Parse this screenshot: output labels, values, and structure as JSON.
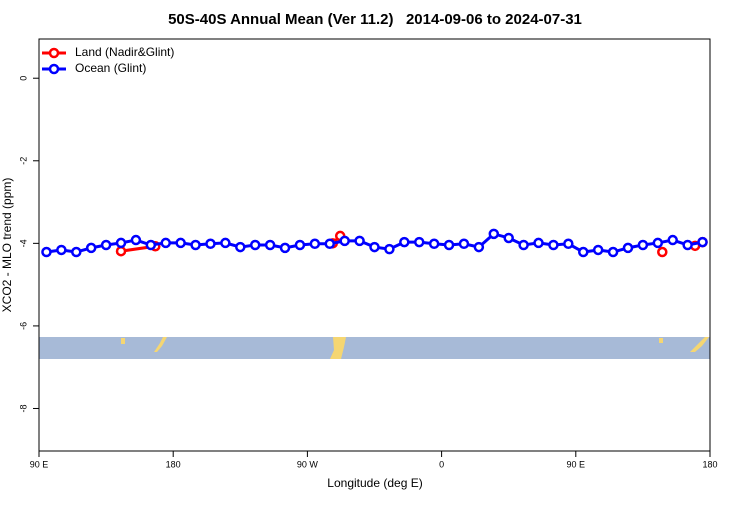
{
  "chart_data": {
    "type": "line",
    "title": "50S-40S Annual Mean (Ver 11.2)   2014-09-06 to 2024-07-31",
    "x_label": "Longitude (deg E)",
    "y_label": "XCO2 - MLO trend (ppm)",
    "xlim": [
      90,
      540
    ],
    "xticks": [
      {
        "value": 90,
        "label": "90 E"
      },
      180,
      {
        "value": 270,
        "label": "90 W"
      },
      {
        "value": 360,
        "label": "0"
      },
      {
        "value": 450,
        "label": "90 E"
      },
      {
        "value": 540,
        "label": "180"
      }
    ],
    "ylim": [
      -9.03,
      0.95
    ],
    "yticks": [
      0,
      -2,
      -4,
      -6,
      -8
    ],
    "legend": "top-left",
    "series": [
      {
        "name": "Land (Nadir&Glint)",
        "color": "#ff0000",
        "x": [
          145,
          168,
          null,
          287,
          292,
          null,
          508,
          null,
          530,
          535
        ],
        "values": [
          -4.19,
          -4.07,
          null,
          -4.0,
          -3.82,
          null,
          -4.21,
          null,
          -4.06,
          -3.97
        ]
      },
      {
        "name": "Ocean (Glint)",
        "color": "#0000ff",
        "x": [
          95,
          105,
          115,
          125,
          135,
          145,
          155,
          165,
          175,
          185,
          195,
          205,
          215,
          225,
          235,
          245,
          255,
          265,
          275,
          285,
          295,
          305,
          315,
          325,
          335,
          345,
          355,
          365,
          375,
          385,
          395,
          405,
          415,
          425,
          435,
          445,
          455,
          465,
          475,
          485,
          495,
          505,
          515,
          525,
          535
        ],
        "values": [
          -4.21,
          -4.16,
          -4.21,
          -4.11,
          -4.04,
          -3.99,
          -3.92,
          -4.04,
          -3.99,
          -3.99,
          -4.04,
          -4.01,
          -3.99,
          -4.09,
          -4.04,
          -4.04,
          -4.11,
          -4.04,
          -4.01,
          -4.01,
          -3.94,
          -3.94,
          -4.09,
          -4.14,
          -3.97,
          -3.97,
          -4.01,
          -4.04,
          -4.01,
          -4.09,
          -3.77,
          -3.87,
          -4.04,
          -3.99,
          -4.04,
          -4.01,
          -4.21,
          -4.16,
          -4.21,
          -4.11,
          -4.04,
          -3.99,
          -3.92,
          -4.04,
          -3.97
        ]
      }
    ]
  }
}
